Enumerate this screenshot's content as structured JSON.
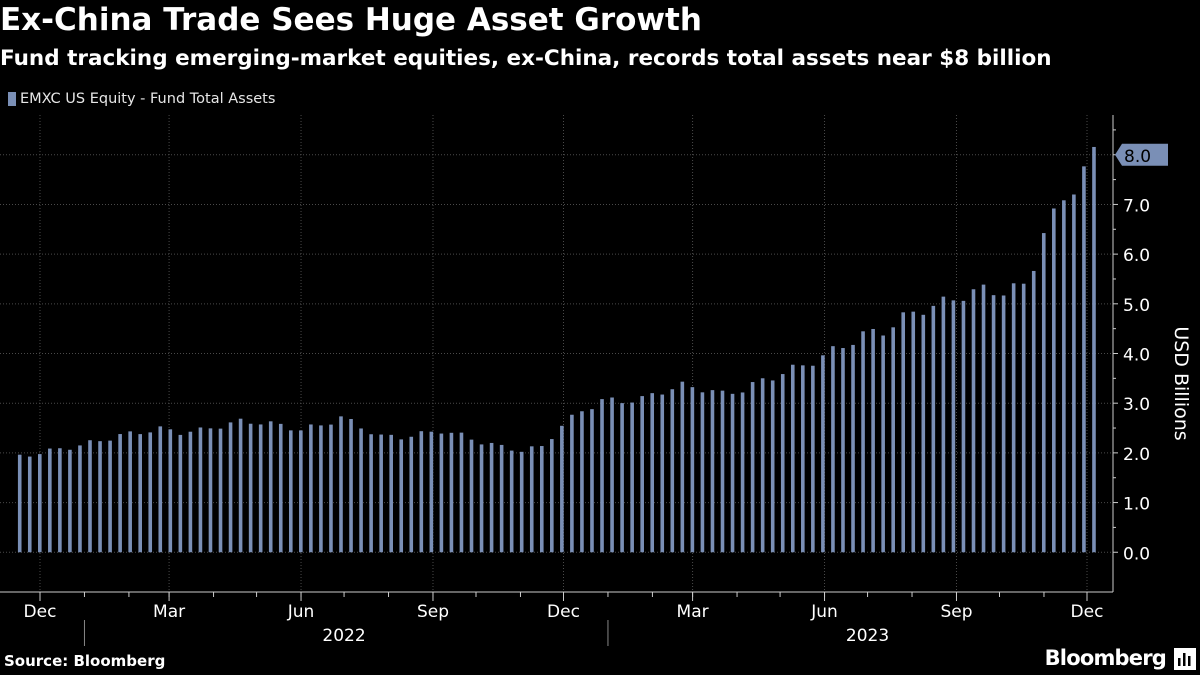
{
  "header": {
    "title": "Ex-China Trade Sees Huge Asset Growth",
    "subtitle": "Fund tracking emerging-market equities, ex-China, records total assets near $8 billion"
  },
  "legend": {
    "label": "EMXC US Equity - Fund Total Assets"
  },
  "footer": {
    "source": "Source: Bloomberg",
    "brand": "Bloomberg"
  },
  "colors": {
    "bar": "#7a8fb6",
    "background": "#000000",
    "grid": "#4a4a4a",
    "text": "#ffffff"
  },
  "chart_data": {
    "type": "bar",
    "ylabel": "USD Billions",
    "ylim": [
      -0.8,
      8.8
    ],
    "yticks": [
      0.0,
      1.0,
      2.0,
      3.0,
      4.0,
      5.0,
      6.0,
      7.0,
      8.0
    ],
    "ytick_labels": [
      "0.0",
      "1.0",
      "2.0",
      "3.0",
      "4.0",
      "5.0",
      "6.0",
      "7.0",
      "8.0"
    ],
    "last_value_label": "8.0",
    "x_start": "2021-12-01",
    "x_end": "2023-12-01",
    "month_labels": [
      {
        "label": "Dec",
        "date": "2021-12-01"
      },
      {
        "label": "Mar",
        "date": "2022-03-01"
      },
      {
        "label": "Jun",
        "date": "2022-06-01"
      },
      {
        "label": "Sep",
        "date": "2022-09-01"
      },
      {
        "label": "Dec",
        "date": "2022-12-01"
      },
      {
        "label": "Mar",
        "date": "2023-03-01"
      },
      {
        "label": "Jun",
        "date": "2023-06-01"
      },
      {
        "label": "Sep",
        "date": "2023-09-01"
      },
      {
        "label": "Dec",
        "date": "2023-12-01"
      }
    ],
    "year_labels": [
      {
        "label": "2022",
        "date": "2022-07-01"
      },
      {
        "label": "2023",
        "date": "2023-07-01"
      }
    ],
    "series": [
      {
        "name": "EMXC US Equity - Fund Total Assets",
        "points": [
          [
            "2021-11-17",
            1.93
          ],
          [
            "2021-12-01",
            2.0
          ],
          [
            "2021-12-15",
            2.08
          ],
          [
            "2021-12-29",
            2.15
          ],
          [
            "2022-01-12",
            2.25
          ],
          [
            "2022-01-26",
            2.35
          ],
          [
            "2022-02-09",
            2.42
          ],
          [
            "2022-02-23",
            2.48
          ],
          [
            "2022-03-09",
            2.42
          ],
          [
            "2022-03-23",
            2.45
          ],
          [
            "2022-04-06",
            2.55
          ],
          [
            "2022-04-20",
            2.63
          ],
          [
            "2022-05-04",
            2.62
          ],
          [
            "2022-05-18",
            2.55
          ],
          [
            "2022-06-01",
            2.47
          ],
          [
            "2022-06-15",
            2.55
          ],
          [
            "2022-06-29",
            2.72
          ],
          [
            "2022-07-13",
            2.52
          ],
          [
            "2022-07-27",
            2.33
          ],
          [
            "2022-08-10",
            2.32
          ],
          [
            "2022-08-24",
            2.38
          ],
          [
            "2022-09-07",
            2.45
          ],
          [
            "2022-09-21",
            2.35
          ],
          [
            "2022-10-05",
            2.22
          ],
          [
            "2022-10-19",
            2.12
          ],
          [
            "2022-11-02",
            2.05
          ],
          [
            "2022-11-16",
            2.12
          ],
          [
            "2022-11-30",
            2.55
          ],
          [
            "2022-12-14",
            2.85
          ],
          [
            "2022-12-28",
            3.05
          ],
          [
            "2023-01-11",
            3.05
          ],
          [
            "2023-01-25",
            3.08
          ],
          [
            "2023-02-08",
            3.25
          ],
          [
            "2023-02-22",
            3.35
          ],
          [
            "2023-03-08",
            3.3
          ],
          [
            "2023-03-22",
            3.18
          ],
          [
            "2023-04-05",
            3.28
          ],
          [
            "2023-04-19",
            3.45
          ],
          [
            "2023-05-03",
            3.62
          ],
          [
            "2023-05-17",
            3.75
          ],
          [
            "2023-05-31",
            3.95
          ],
          [
            "2023-06-14",
            4.15
          ],
          [
            "2023-06-28",
            4.38
          ],
          [
            "2023-07-12",
            4.45
          ],
          [
            "2023-07-26",
            4.72
          ],
          [
            "2023-08-09",
            4.9
          ],
          [
            "2023-08-23",
            5.02
          ],
          [
            "2023-09-06",
            5.18
          ],
          [
            "2023-09-20",
            5.28
          ],
          [
            "2023-10-04",
            5.25
          ],
          [
            "2023-10-18",
            5.35
          ],
          [
            "2023-10-25",
            5.8
          ],
          [
            "2023-11-01",
            6.45
          ],
          [
            "2023-11-08",
            6.75
          ],
          [
            "2023-11-15",
            7.1
          ],
          [
            "2023-11-22",
            7.38
          ],
          [
            "2023-11-29",
            7.7
          ],
          [
            "2023-12-06",
            7.98
          ]
        ]
      }
    ]
  }
}
